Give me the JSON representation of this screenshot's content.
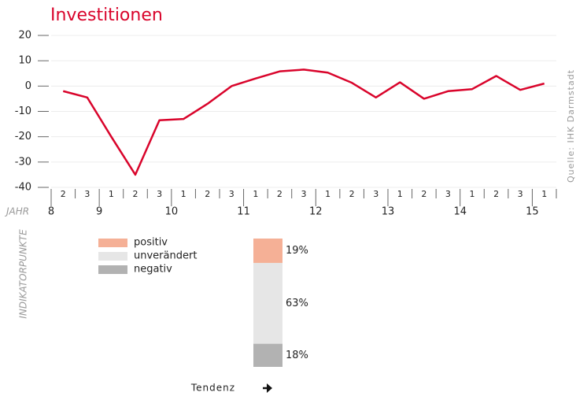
{
  "source": "Quelle: IHK Darmstadt",
  "chart_data": [
    {
      "type": "line",
      "title": "Investitionen",
      "xlabel": "JAHR",
      "ylabel": "INDIKATORPUNKTE",
      "categories": [
        "2",
        "3",
        "1",
        "2",
        "3",
        "1",
        "2",
        "3",
        "1",
        "2",
        "3",
        "1",
        "2",
        "3",
        "1",
        "2",
        "3",
        "1",
        "2",
        "3",
        "1"
      ],
      "year_labels": [
        "8",
        "9",
        "10",
        "11",
        "12",
        "13",
        "14",
        "15"
      ],
      "values": [
        -2,
        -4.5,
        -20,
        -35,
        -13.5,
        -13,
        -7,
        0,
        3,
        5.8,
        6.5,
        5.3,
        1.3,
        -4.5,
        1.5,
        -5,
        -2,
        -1.2,
        4,
        -1.5,
        1
      ],
      "color": "#d9042b",
      "ylim": [
        -40,
        20
      ],
      "yticks": [
        -40,
        -30,
        -20,
        -10,
        0,
        10,
        20
      ],
      "grid": true
    },
    {
      "type": "stacked_bar",
      "categories": [
        "Tendenz"
      ],
      "series": [
        {
          "name": "positiv",
          "color": "#f5b096",
          "values": [
            19
          ],
          "value_labels": [
            "19%"
          ]
        },
        {
          "name": "unverändert",
          "color": "#e6e6e6",
          "values": [
            63
          ],
          "value_labels": [
            "63%"
          ]
        },
        {
          "name": "negativ",
          "color": "#b2b2b2",
          "values": [
            18
          ],
          "value_labels": [
            "18%"
          ]
        }
      ],
      "ylim": [
        0,
        100
      ]
    }
  ]
}
